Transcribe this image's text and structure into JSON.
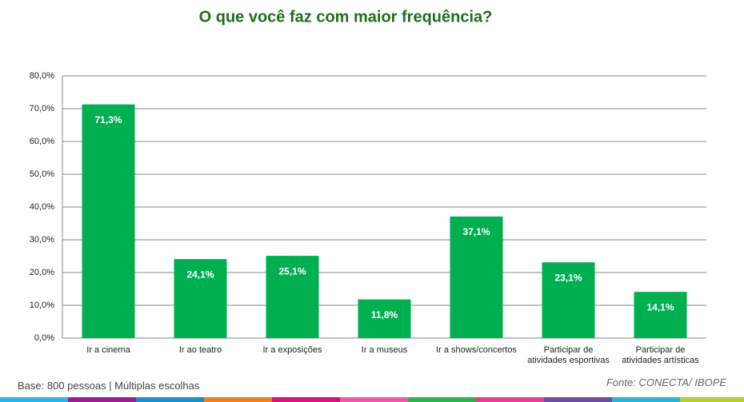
{
  "chart_data": {
    "type": "bar",
    "title": "O que você faz com maior frequência?",
    "categories": [
      "Ir a cinema",
      "Ir ao teatro",
      "Ir a exposições",
      "Ir a museus",
      "Ir a shows/concertos",
      "Participar de\natividades esportivas",
      "Participar de\natividades artísticas"
    ],
    "values": [
      71.3,
      24.1,
      25.1,
      11.8,
      37.1,
      23.1,
      14.1
    ],
    "value_labels": [
      "71,3%",
      "24,1%",
      "25,1%",
      "11,8%",
      "37,1%",
      "23,1%",
      "14,1%"
    ],
    "color": "#00b050",
    "ylim": [
      0,
      80
    ],
    "yticks": [
      {
        "value": 0,
        "label": "0,0%"
      },
      {
        "value": 10,
        "label": "10,0%"
      },
      {
        "value": 20,
        "label": "20,0%"
      },
      {
        "value": 30,
        "label": "30,0%"
      },
      {
        "value": 40,
        "label": "40,0%"
      },
      {
        "value": 50,
        "label": "50,0%"
      },
      {
        "value": 60,
        "label": "60,0%"
      },
      {
        "value": 70,
        "label": "70,0%"
      },
      {
        "value": 80,
        "label": "80,0%"
      }
    ],
    "grid": true,
    "note": "Base: 800  pessoas |  Múltiplas escolhas",
    "source": "Fonte: CONECTA/ IBOPE"
  }
}
